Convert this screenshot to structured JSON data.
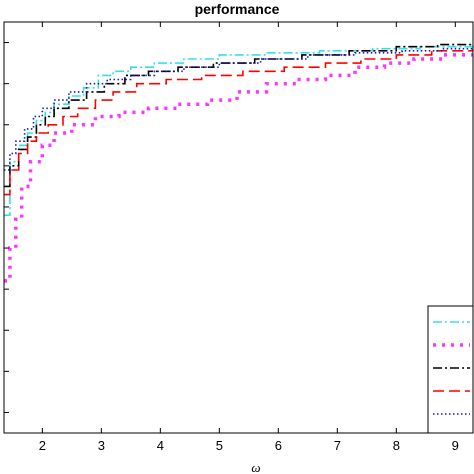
{
  "chart_data": {
    "type": "line",
    "title": "performance",
    "xlabel": "ω",
    "ylabel": "",
    "xlim": [
      1.35,
      9.3
    ],
    "ylim": [
      0.0,
      1.0
    ],
    "grid": false,
    "legend_position": "bottom-right",
    "x_ticks": [
      2,
      3,
      4,
      5,
      6,
      7,
      8,
      9
    ],
    "x_tick_labels": [
      "2",
      "3",
      "4",
      "5",
      "6",
      "7",
      "8",
      "9"
    ],
    "y_ticks": [
      0.05,
      0.15,
      0.25,
      0.35,
      0.45,
      0.55,
      0.65,
      0.75,
      0.85,
      0.95
    ],
    "colors": {
      "cyan_dashdot": "#33e0e8",
      "magenta_dots": "#ff33ff",
      "black_dashdot": "#000000",
      "red_dashed": "#ff0000",
      "blue_dotted": "#1a1aa8"
    },
    "series": [
      {
        "color": "#33e0e8",
        "line_style": "dashdot",
        "x": [
          1.35,
          1.45,
          1.6,
          1.75,
          1.9,
          2.05,
          2.2,
          2.45,
          2.7,
          2.95,
          3.2,
          3.5,
          3.9,
          4.4,
          5.0,
          5.8,
          6.7,
          7.6,
          8.4,
          9.3
        ],
        "y": [
          0.53,
          0.66,
          0.7,
          0.73,
          0.76,
          0.78,
          0.8,
          0.82,
          0.84,
          0.87,
          0.88,
          0.89,
          0.9,
          0.91,
          0.92,
          0.925,
          0.93,
          0.935,
          0.94,
          0.94
        ]
      },
      {
        "color": "#ff33ff",
        "line_style": "dots",
        "x": [
          1.35,
          1.45,
          1.55,
          1.65,
          1.8,
          2.0,
          2.2,
          2.5,
          2.9,
          3.3,
          3.8,
          4.3,
          4.8,
          5.3,
          5.8,
          6.3,
          6.8,
          7.3,
          7.8,
          8.3,
          8.8,
          9.3
        ],
        "y": [
          0.37,
          0.45,
          0.52,
          0.6,
          0.66,
          0.7,
          0.73,
          0.75,
          0.77,
          0.78,
          0.79,
          0.8,
          0.81,
          0.83,
          0.85,
          0.86,
          0.87,
          0.89,
          0.9,
          0.91,
          0.92,
          0.93
        ]
      },
      {
        "color": "#000000",
        "line_style": "dashdot",
        "x": [
          1.35,
          1.45,
          1.6,
          1.75,
          1.9,
          2.05,
          2.2,
          2.45,
          2.75,
          3.05,
          3.4,
          3.8,
          4.3,
          4.9,
          5.6,
          6.4,
          7.2,
          8.0,
          8.7,
          9.3
        ],
        "y": [
          0.6,
          0.65,
          0.69,
          0.72,
          0.75,
          0.77,
          0.79,
          0.81,
          0.83,
          0.85,
          0.87,
          0.88,
          0.89,
          0.9,
          0.91,
          0.92,
          0.93,
          0.94,
          0.945,
          0.945
        ]
      },
      {
        "color": "#ff0000",
        "line_style": "dashed",
        "x": [
          1.35,
          1.45,
          1.6,
          1.75,
          1.9,
          2.1,
          2.35,
          2.6,
          2.9,
          3.2,
          3.6,
          4.1,
          4.7,
          5.4,
          6.1,
          6.8,
          7.4,
          8.0,
          8.6,
          9.3
        ],
        "y": [
          0.58,
          0.64,
          0.68,
          0.71,
          0.73,
          0.75,
          0.77,
          0.79,
          0.81,
          0.83,
          0.85,
          0.86,
          0.87,
          0.88,
          0.89,
          0.9,
          0.91,
          0.92,
          0.93,
          0.935
        ]
      },
      {
        "color": "#1a1aa8",
        "line_style": "dotted",
        "x": [
          1.35,
          1.45,
          1.55,
          1.7,
          1.85,
          2.0,
          2.2,
          2.45,
          2.75,
          3.1,
          3.5,
          3.9,
          4.4,
          5.0,
          5.7,
          6.5,
          7.3,
          8.1,
          8.8,
          9.3
        ],
        "y": [
          0.64,
          0.68,
          0.71,
          0.74,
          0.77,
          0.79,
          0.81,
          0.83,
          0.85,
          0.86,
          0.87,
          0.88,
          0.89,
          0.9,
          0.91,
          0.92,
          0.925,
          0.93,
          0.935,
          0.94
        ]
      }
    ]
  }
}
